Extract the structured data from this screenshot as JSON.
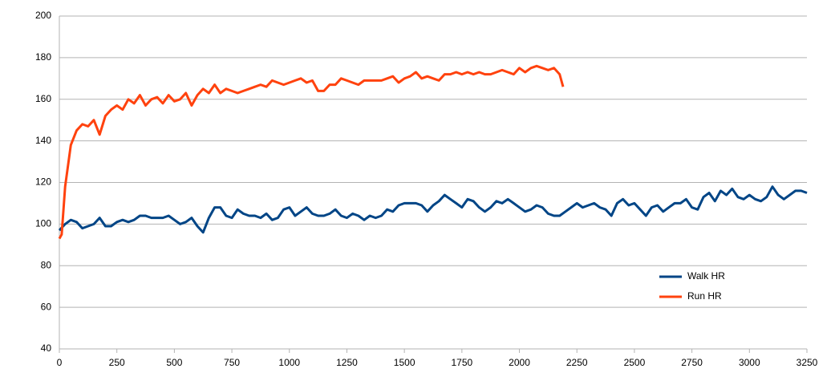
{
  "chart_data": {
    "type": "line",
    "xlim": [
      0,
      3250
    ],
    "xticks": [
      0,
      250,
      500,
      750,
      1000,
      1250,
      1500,
      1750,
      2000,
      2250,
      2500,
      2750,
      3000,
      3250
    ],
    "ylim": [
      40,
      200
    ],
    "yticks": [
      40,
      60,
      80,
      100,
      120,
      140,
      160,
      180,
      200
    ],
    "grid": true,
    "legend": "right",
    "series": [
      {
        "name": "Walk HR",
        "color": "#004586",
        "x": [
          0,
          25,
          50,
          75,
          100,
          125,
          150,
          175,
          200,
          225,
          250,
          275,
          300,
          325,
          350,
          375,
          400,
          425,
          450,
          475,
          500,
          525,
          550,
          575,
          600,
          625,
          650,
          675,
          700,
          725,
          750,
          775,
          800,
          825,
          850,
          875,
          900,
          925,
          950,
          975,
          1000,
          1025,
          1050,
          1075,
          1100,
          1125,
          1150,
          1175,
          1200,
          1225,
          1250,
          1275,
          1300,
          1325,
          1350,
          1375,
          1400,
          1425,
          1450,
          1475,
          1500,
          1525,
          1550,
          1575,
          1600,
          1625,
          1650,
          1675,
          1700,
          1725,
          1750,
          1775,
          1800,
          1825,
          1850,
          1875,
          1900,
          1925,
          1950,
          1975,
          2000,
          2025,
          2050,
          2075,
          2100,
          2125,
          2150,
          2175,
          2200,
          2225,
          2250,
          2275,
          2300,
          2325,
          2350,
          2375,
          2400,
          2425,
          2450,
          2475,
          2500,
          2525,
          2550,
          2575,
          2600,
          2625,
          2650,
          2675,
          2700,
          2725,
          2750,
          2775,
          2800,
          2825,
          2850,
          2875,
          2900,
          2925,
          2950,
          2975,
          3000,
          3025,
          3050,
          3075,
          3100,
          3125,
          3150,
          3175,
          3200,
          3225,
          3250
        ],
        "values": [
          97,
          100,
          102,
          101,
          98,
          99,
          100,
          103,
          99,
          99,
          101,
          102,
          101,
          102,
          104,
          104,
          103,
          103,
          103,
          104,
          102,
          100,
          101,
          103,
          99,
          96,
          103,
          108,
          108,
          104,
          103,
          107,
          105,
          104,
          104,
          103,
          105,
          102,
          103,
          107,
          108,
          104,
          106,
          108,
          105,
          104,
          104,
          105,
          107,
          104,
          103,
          105,
          104,
          102,
          104,
          103,
          104,
          107,
          106,
          109,
          110,
          110,
          110,
          109,
          106,
          109,
          111,
          114,
          112,
          110,
          108,
          112,
          111,
          108,
          106,
          108,
          111,
          110,
          112,
          110,
          108,
          106,
          107,
          109,
          108,
          105,
          104,
          104,
          106,
          108,
          110,
          108,
          109,
          110,
          108,
          107,
          104,
          110,
          112,
          109,
          110,
          107,
          104,
          108,
          109,
          106,
          108,
          110,
          110,
          112,
          108,
          107,
          113,
          115,
          111,
          116,
          114,
          117,
          113,
          112,
          114,
          112,
          111,
          113,
          118,
          114,
          112,
          114,
          116,
          116,
          115
        ]
      },
      {
        "name": "Run HR",
        "color": "#ff420e",
        "x": [
          0,
          10,
          25,
          50,
          75,
          100,
          125,
          150,
          175,
          200,
          225,
          250,
          275,
          300,
          325,
          350,
          375,
          400,
          425,
          450,
          475,
          500,
          525,
          550,
          575,
          600,
          625,
          650,
          675,
          700,
          725,
          750,
          775,
          800,
          825,
          850,
          875,
          900,
          925,
          950,
          975,
          1000,
          1025,
          1050,
          1075,
          1100,
          1125,
          1150,
          1175,
          1200,
          1225,
          1250,
          1275,
          1300,
          1325,
          1350,
          1375,
          1400,
          1425,
          1450,
          1475,
          1500,
          1525,
          1550,
          1575,
          1600,
          1625,
          1650,
          1675,
          1700,
          1725,
          1750,
          1775,
          1800,
          1825,
          1850,
          1875,
          1900,
          1925,
          1950,
          1975,
          2000,
          2025,
          2050,
          2075,
          2100,
          2125,
          2150,
          2175,
          2190
        ],
        "values": [
          93,
          95,
          118,
          138,
          145,
          148,
          147,
          150,
          143,
          152,
          155,
          157,
          155,
          160,
          158,
          162,
          157,
          160,
          161,
          158,
          162,
          159,
          160,
          163,
          157,
          162,
          165,
          163,
          167,
          163,
          165,
          164,
          163,
          164,
          165,
          166,
          167,
          166,
          169,
          168,
          167,
          168,
          169,
          170,
          168,
          169,
          164,
          164,
          167,
          167,
          170,
          169,
          168,
          167,
          169,
          169,
          169,
          169,
          170,
          171,
          168,
          170,
          171,
          173,
          170,
          171,
          170,
          169,
          172,
          172,
          173,
          172,
          173,
          172,
          173,
          172,
          172,
          173,
          174,
          173,
          172,
          175,
          173,
          175,
          176,
          175,
          174,
          175,
          172,
          166
        ]
      }
    ]
  }
}
